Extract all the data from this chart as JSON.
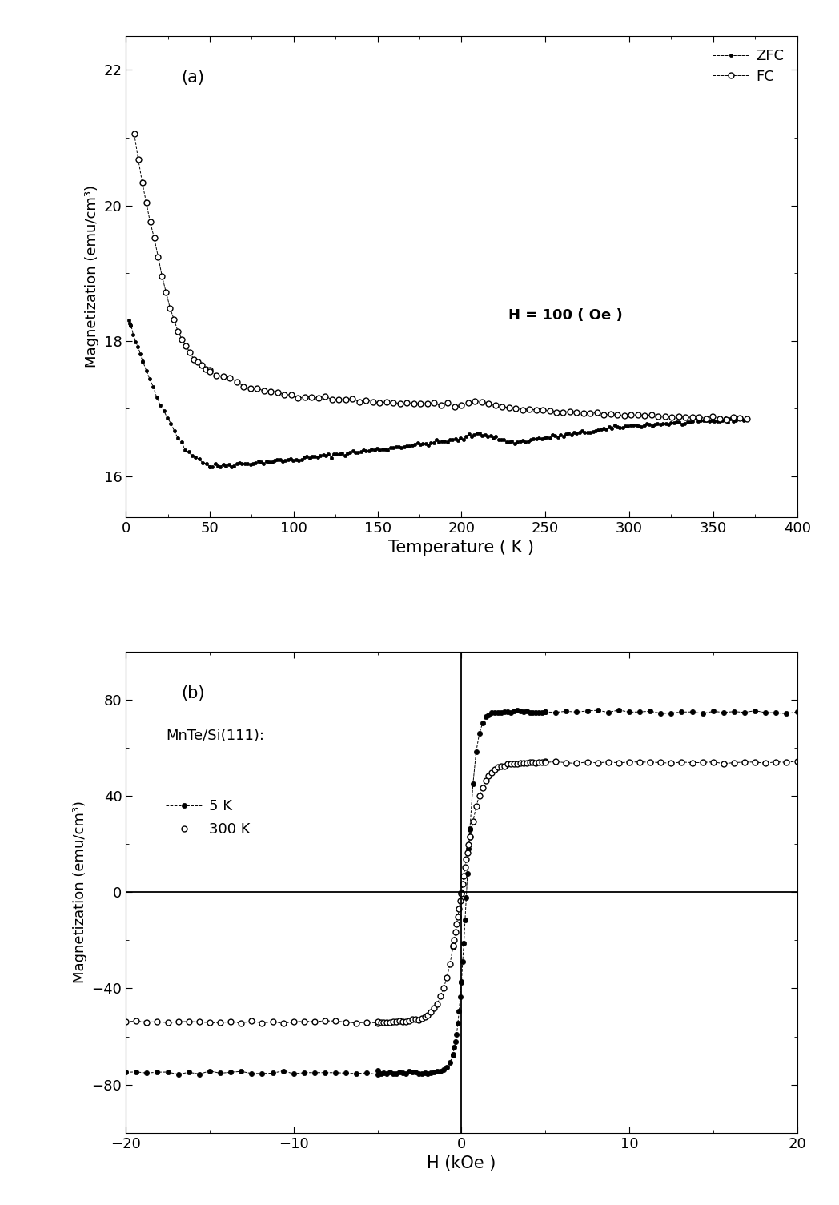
{
  "panel_a": {
    "label": "(a)",
    "xlabel": "Temperature ( K )",
    "ylabel": "Magnetization (emu/cm³)",
    "xlim": [
      0,
      400
    ],
    "ylim": [
      15.4,
      22.5
    ],
    "yticks": [
      16,
      18,
      20,
      22
    ],
    "xticks": [
      0,
      50,
      100,
      150,
      200,
      250,
      300,
      350,
      400
    ],
    "annotation": "H = 100 ( Oe )",
    "legend_zfc": "ZFC",
    "legend_fc": "FC"
  },
  "panel_b": {
    "label": "(b)",
    "xlabel": "H (kOe )",
    "ylabel": "Magnetization (emu/cm³)",
    "xlim": [
      -20,
      20
    ],
    "ylim": [
      -100,
      100
    ],
    "yticks": [
      -80,
      -40,
      0,
      40,
      80
    ],
    "xticks": [
      -20,
      -10,
      0,
      10,
      20
    ],
    "annotation": "MnTe/Si(111):",
    "legend_5k": "5 K",
    "legend_300k": "300 K"
  },
  "figure": {
    "bg_color": "#ffffff",
    "figsize": [
      10.48,
      15.05
    ],
    "dpi": 100
  }
}
